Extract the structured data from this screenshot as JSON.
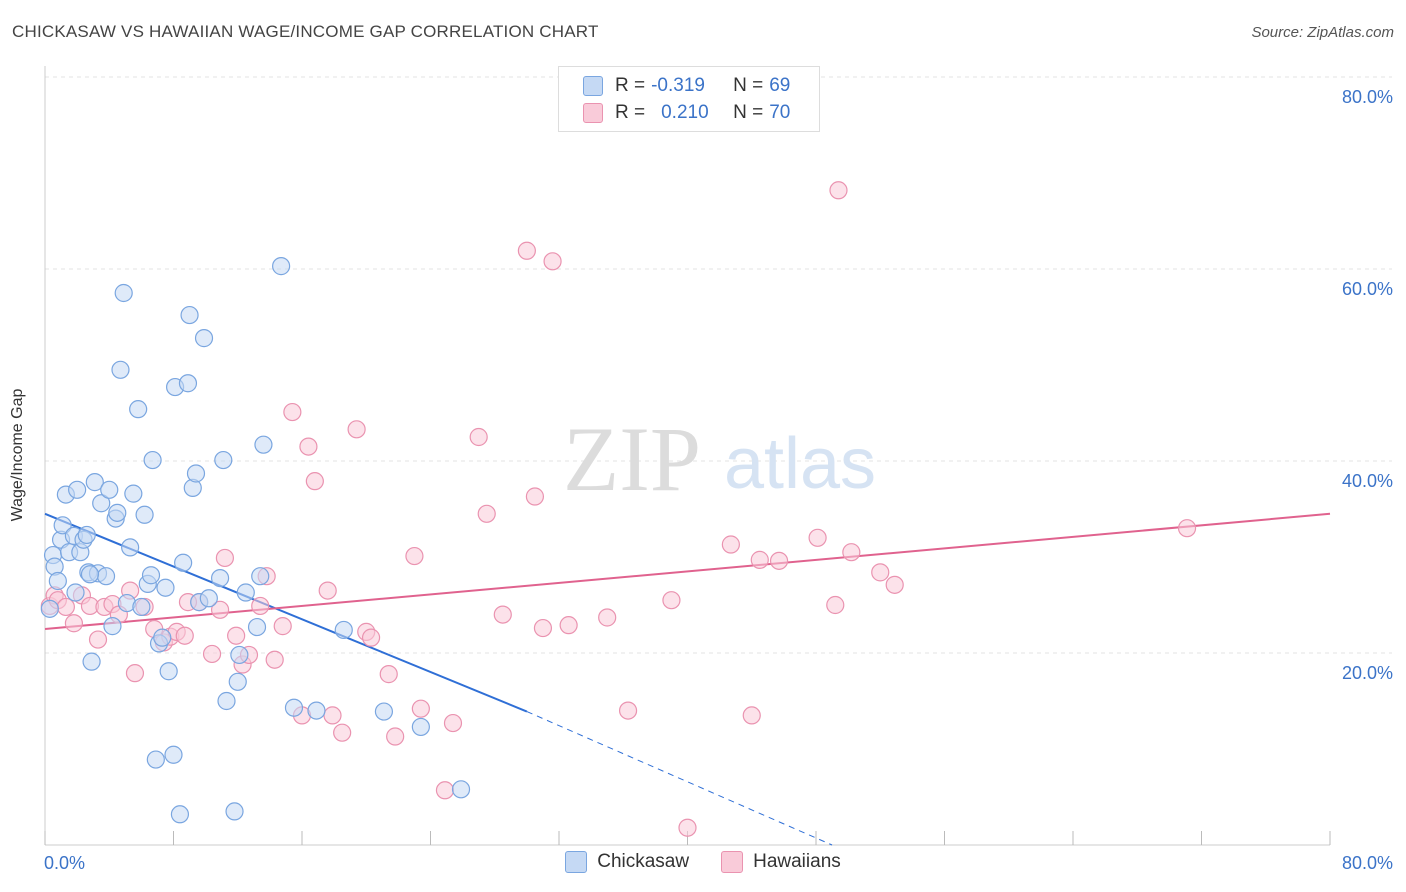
{
  "header": {
    "title": "CHICKASAW VS HAWAIIAN WAGE/INCOME GAP CORRELATION CHART",
    "source": "Source: ZipAtlas.com"
  },
  "watermark": {
    "zip": "ZIP",
    "atlas": "atlas"
  },
  "legend": {
    "rows": [
      {
        "r_label": "R = ",
        "r_value": "-0.319",
        "n_label": "N = ",
        "n_value": "69"
      },
      {
        "r_label": "R = ",
        "r_value": "0.210",
        "n_label": "N = ",
        "n_value": "70"
      }
    ]
  },
  "bottom_legend": {
    "series1": "Chickasaw",
    "series2": "Hawaiians"
  },
  "colors": {
    "chickasaw_fill": "#c5d9f4",
    "chickasaw_stroke": "#7aa6e0",
    "chickasaw_line": "#2f6fd6",
    "hawaiians_fill": "#f9cbd9",
    "hawaiians_stroke": "#ea93b0",
    "hawaiians_line": "#e0628e",
    "axis_label": "#3b73c8",
    "grid": "#e3e3e3"
  },
  "chart_data": {
    "type": "scatter",
    "title": "CHICKASAW VS HAWAIIAN WAGE/INCOME GAP CORRELATION CHART",
    "xlabel": "",
    "ylabel": "Wage/Income Gap",
    "xlim": [
      0,
      80
    ],
    "ylim": [
      0,
      80
    ],
    "x_tick_labels": [
      "0.0%",
      "80.0%"
    ],
    "y_tick_labels": [
      "20.0%",
      "40.0%",
      "60.0%",
      "80.0%"
    ],
    "y_ticks": [
      20,
      40,
      60,
      80
    ],
    "grid": true,
    "legend_position": "top-center",
    "series": [
      {
        "name": "Chickasaw",
        "r": -0.319,
        "n": 69,
        "trend": {
          "x": [
            0,
            30
          ],
          "y": [
            34.5,
            13.9
          ],
          "dashed_to": [
            49,
            0
          ]
        },
        "points": [
          [
            0.3,
            24.6
          ],
          [
            0.5,
            30.2
          ],
          [
            0.6,
            29.0
          ],
          [
            0.8,
            27.5
          ],
          [
            1.0,
            31.8
          ],
          [
            1.1,
            33.3
          ],
          [
            1.3,
            36.5
          ],
          [
            1.5,
            30.5
          ],
          [
            1.8,
            32.2
          ],
          [
            1.9,
            26.3
          ],
          [
            2.0,
            37.0
          ],
          [
            2.2,
            30.5
          ],
          [
            2.4,
            31.8
          ],
          [
            2.6,
            32.3
          ],
          [
            2.7,
            28.4
          ],
          [
            2.9,
            19.1
          ],
          [
            3.1,
            37.8
          ],
          [
            3.3,
            28.3
          ],
          [
            3.5,
            35.6
          ],
          [
            3.8,
            28.0
          ],
          [
            4.0,
            37.0
          ],
          [
            4.2,
            22.8
          ],
          [
            4.4,
            34.0
          ],
          [
            4.5,
            34.6
          ],
          [
            4.7,
            49.5
          ],
          [
            4.9,
            57.5
          ],
          [
            5.1,
            25.2
          ],
          [
            5.3,
            31.0
          ],
          [
            5.5,
            36.6
          ],
          [
            5.8,
            45.4
          ],
          [
            6.0,
            24.8
          ],
          [
            6.2,
            34.4
          ],
          [
            6.4,
            27.2
          ],
          [
            6.6,
            28.1
          ],
          [
            6.7,
            40.1
          ],
          [
            6.9,
            8.9
          ],
          [
            7.1,
            21.0
          ],
          [
            7.3,
            21.6
          ],
          [
            7.5,
            26.8
          ],
          [
            7.7,
            18.1
          ],
          [
            8.0,
            9.4
          ],
          [
            8.1,
            47.7
          ],
          [
            8.4,
            3.2
          ],
          [
            8.6,
            29.4
          ],
          [
            8.9,
            48.1
          ],
          [
            9.0,
            55.2
          ],
          [
            9.2,
            37.2
          ],
          [
            9.4,
            38.7
          ],
          [
            9.6,
            25.3
          ],
          [
            9.9,
            52.8
          ],
          [
            10.2,
            25.7
          ],
          [
            10.9,
            27.8
          ],
          [
            11.1,
            40.1
          ],
          [
            11.3,
            15.0
          ],
          [
            11.8,
            3.5
          ],
          [
            12.0,
            17.0
          ],
          [
            12.1,
            19.8
          ],
          [
            12.5,
            26.3
          ],
          [
            13.2,
            22.7
          ],
          [
            13.4,
            28.0
          ],
          [
            13.6,
            41.7
          ],
          [
            14.7,
            60.3
          ],
          [
            15.5,
            14.3
          ],
          [
            16.9,
            14.0
          ],
          [
            18.6,
            22.4
          ],
          [
            21.1,
            13.9
          ],
          [
            23.4,
            12.3
          ],
          [
            25.9,
            5.8
          ],
          [
            2.8,
            28.2
          ]
        ]
      },
      {
        "name": "Hawaiians",
        "r": 0.21,
        "n": 70,
        "trend": {
          "x": [
            0,
            80
          ],
          "y": [
            22.5,
            34.5
          ]
        },
        "points": [
          [
            0.3,
            24.9
          ],
          [
            0.6,
            26.0
          ],
          [
            0.8,
            25.5
          ],
          [
            1.3,
            24.8
          ],
          [
            1.8,
            23.1
          ],
          [
            2.3,
            26.0
          ],
          [
            2.8,
            24.9
          ],
          [
            3.3,
            21.4
          ],
          [
            3.7,
            24.8
          ],
          [
            4.2,
            25.1
          ],
          [
            4.6,
            24.0
          ],
          [
            5.3,
            26.5
          ],
          [
            5.6,
            17.9
          ],
          [
            6.2,
            24.8
          ],
          [
            6.8,
            22.5
          ],
          [
            7.4,
            21.1
          ],
          [
            7.8,
            21.7
          ],
          [
            8.2,
            22.2
          ],
          [
            8.7,
            21.8
          ],
          [
            9.6,
            25.3
          ],
          [
            10.4,
            19.9
          ],
          [
            10.9,
            24.5
          ],
          [
            11.2,
            29.9
          ],
          [
            11.9,
            21.8
          ],
          [
            12.3,
            18.8
          ],
          [
            12.7,
            19.8
          ],
          [
            13.4,
            24.9
          ],
          [
            13.8,
            28.0
          ],
          [
            14.3,
            19.3
          ],
          [
            14.8,
            22.8
          ],
          [
            15.4,
            45.1
          ],
          [
            16.0,
            13.5
          ],
          [
            16.4,
            41.5
          ],
          [
            16.8,
            37.9
          ],
          [
            17.6,
            26.5
          ],
          [
            17.9,
            13.5
          ],
          [
            18.5,
            11.7
          ],
          [
            19.4,
            43.3
          ],
          [
            20.0,
            22.2
          ],
          [
            20.3,
            21.6
          ],
          [
            21.4,
            17.8
          ],
          [
            21.8,
            11.3
          ],
          [
            23.0,
            30.1
          ],
          [
            23.4,
            14.2
          ],
          [
            24.9,
            5.7
          ],
          [
            25.4,
            12.7
          ],
          [
            27.0,
            42.5
          ],
          [
            27.5,
            34.5
          ],
          [
            28.5,
            24.0
          ],
          [
            30.0,
            61.9
          ],
          [
            30.5,
            36.3
          ],
          [
            31.0,
            22.6
          ],
          [
            31.6,
            60.8
          ],
          [
            32.6,
            22.9
          ],
          [
            35.0,
            23.7
          ],
          [
            36.3,
            14.0
          ],
          [
            39.0,
            25.5
          ],
          [
            40.0,
            1.8
          ],
          [
            42.7,
            31.3
          ],
          [
            44.0,
            13.5
          ],
          [
            44.5,
            29.7
          ],
          [
            45.7,
            29.6
          ],
          [
            48.1,
            32.0
          ],
          [
            49.2,
            25.0
          ],
          [
            49.4,
            68.2
          ],
          [
            50.2,
            30.5
          ],
          [
            52.0,
            28.4
          ],
          [
            52.9,
            27.1
          ],
          [
            71.1,
            33.0
          ],
          [
            8.9,
            25.3
          ]
        ]
      }
    ]
  }
}
